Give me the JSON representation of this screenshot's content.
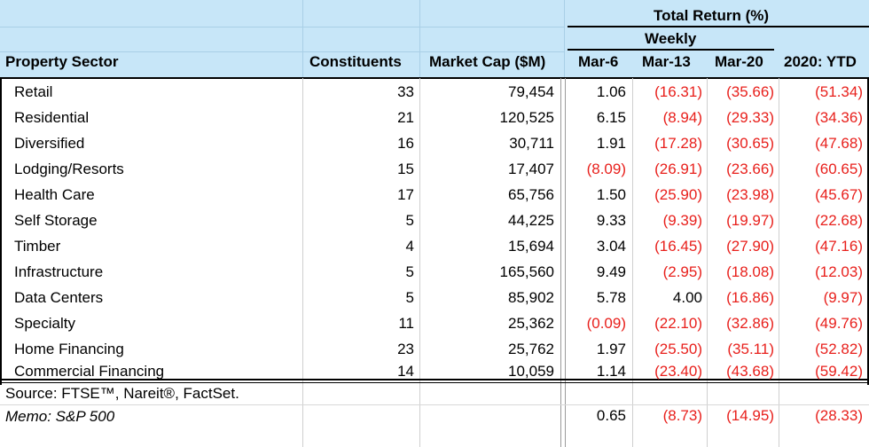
{
  "header": {
    "group_title": "Total Return (%)",
    "weekly_label": "Weekly",
    "col_sector": "Property Sector",
    "col_constituents": "Constituents",
    "col_market_cap": "Market Cap ($M)",
    "col_w1": "Mar-6",
    "col_w2": "Mar-13",
    "col_w3": "Mar-20",
    "col_ytd": "2020: YTD"
  },
  "rows": [
    {
      "sector": "Retail",
      "constituents": "33",
      "market_cap": "79,454",
      "w1": "1.06",
      "w2": "(16.31)",
      "w3": "(35.66)",
      "ytd": "(51.34)"
    },
    {
      "sector": "Residential",
      "constituents": "21",
      "market_cap": "120,525",
      "w1": "6.15",
      "w2": "(8.94)",
      "w3": "(29.33)",
      "ytd": "(34.36)"
    },
    {
      "sector": "Diversified",
      "constituents": "16",
      "market_cap": "30,711",
      "w1": "1.91",
      "w2": "(17.28)",
      "w3": "(30.65)",
      "ytd": "(47.68)"
    },
    {
      "sector": "Lodging/Resorts",
      "constituents": "15",
      "market_cap": "17,407",
      "w1": "(8.09)",
      "w2": "(26.91)",
      "w3": "(23.66)",
      "ytd": "(60.65)"
    },
    {
      "sector": "Health Care",
      "constituents": "17",
      "market_cap": "65,756",
      "w1": "1.50",
      "w2": "(25.90)",
      "w3": "(23.98)",
      "ytd": "(45.67)"
    },
    {
      "sector": "Self Storage",
      "constituents": "5",
      "market_cap": "44,225",
      "w1": "9.33",
      "w2": "(9.39)",
      "w3": "(19.97)",
      "ytd": "(22.68)"
    },
    {
      "sector": "Timber",
      "constituents": "4",
      "market_cap": "15,694",
      "w1": "3.04",
      "w2": "(16.45)",
      "w3": "(27.90)",
      "ytd": "(47.16)"
    },
    {
      "sector": "Infrastructure",
      "constituents": "5",
      "market_cap": "165,560",
      "w1": "9.49",
      "w2": "(2.95)",
      "w3": "(18.08)",
      "ytd": "(12.03)"
    },
    {
      "sector": "Data Centers",
      "constituents": "5",
      "market_cap": "85,902",
      "w1": "5.78",
      "w2": "4.00",
      "w3": "(16.86)",
      "ytd": "(9.97)"
    },
    {
      "sector": "Specialty",
      "constituents": "11",
      "market_cap": "25,362",
      "w1": "(0.09)",
      "w2": "(22.10)",
      "w3": "(32.86)",
      "ytd": "(49.76)"
    },
    {
      "sector": "Home Financing",
      "constituents": "23",
      "market_cap": "25,762",
      "w1": "1.97",
      "w2": "(25.50)",
      "w3": "(35.11)",
      "ytd": "(52.82)"
    },
    {
      "sector": "Commercial Financing",
      "constituents": "14",
      "market_cap": "10,059",
      "w1": "1.14",
      "w2": "(23.40)",
      "w3": "(43.68)",
      "ytd": "(59.42)"
    }
  ],
  "footer": {
    "source": "Source: FTSE™, Nareit®, FactSet.",
    "memo_label": "Memo: S&P 500",
    "memo_w1": "0.65",
    "memo_w2": "(8.73)",
    "memo_w3": "(14.95)",
    "memo_ytd": "(28.33)"
  },
  "colors": {
    "header_bg": "#c7e6f8",
    "negative": "#e8201c",
    "text": "#000000"
  }
}
